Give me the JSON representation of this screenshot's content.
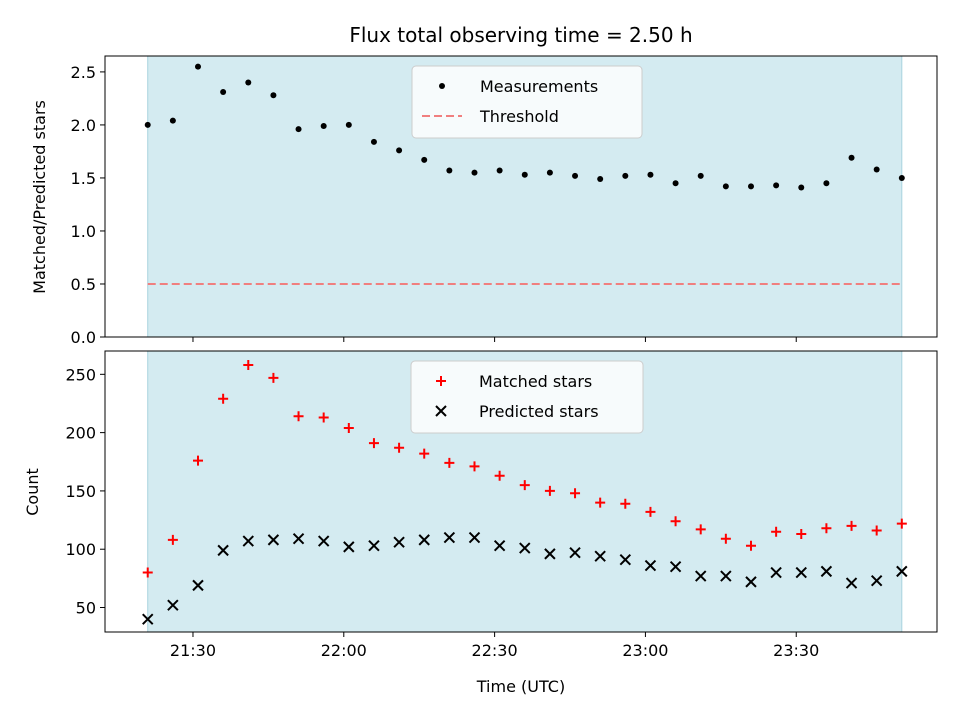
{
  "chart_data": {
    "title": "Flux total observing time = 2.50 h",
    "xlabel": "Time (UTC)",
    "x_tick_labels": [
      "21:30",
      "22:00",
      "22:30",
      "23:00",
      "23:30"
    ],
    "x_tick_minutes": [
      1290,
      1320,
      1350,
      1380,
      1410
    ],
    "x_range_minutes": [
      1272.5,
      1438
    ],
    "observing_window_minutes": [
      1281,
      1431
    ],
    "band_color": "#d4ebf1",
    "time_points": [
      "21:21",
      "21:26",
      "21:31",
      "21:36",
      "21:41",
      "21:46",
      "21:51",
      "21:56",
      "22:01",
      "22:06",
      "22:11",
      "22:16",
      "22:21",
      "22:26",
      "22:31",
      "22:36",
      "22:41",
      "22:46",
      "22:51",
      "22:56",
      "23:01",
      "23:06",
      "23:11",
      "23:16",
      "23:21",
      "23:26",
      "23:31",
      "23:36",
      "23:41",
      "23:46",
      "23:51"
    ],
    "panels": [
      {
        "type": "scatter",
        "ylabel": "Matched/Predicted stars",
        "ylim": [
          0,
          2.65
        ],
        "y_ticks": [
          0.0,
          0.5,
          1.0,
          1.5,
          2.0,
          2.5
        ],
        "y_tick_labels": [
          "0.0",
          "0.5",
          "1.0",
          "1.5",
          "2.0",
          "2.5"
        ],
        "legend": "upper center",
        "series": [
          {
            "name": "Measurements",
            "marker": "dot",
            "color": "#000000",
            "values": [
              2.0,
              2.04,
              2.55,
              2.31,
              2.4,
              2.28,
              1.96,
              1.99,
              2.0,
              1.84,
              1.76,
              1.67,
              1.57,
              1.55,
              1.57,
              1.53,
              1.55,
              1.52,
              1.49,
              1.52,
              1.53,
              1.45,
              1.52,
              1.42,
              1.42,
              1.43,
              1.41,
              1.45,
              1.69,
              1.58,
              1.5
            ]
          }
        ],
        "threshold": {
          "name": "Threshold",
          "value": 0.5,
          "color": "#f07f7f"
        }
      },
      {
        "type": "scatter",
        "ylabel": "Count",
        "ylim": [
          29,
          270
        ],
        "y_ticks": [
          50,
          100,
          150,
          200,
          250
        ],
        "y_tick_labels": [
          "50",
          "100",
          "150",
          "200",
          "250"
        ],
        "legend": "upper center",
        "series": [
          {
            "name": "Matched stars",
            "marker": "plus",
            "color": "#ff0000",
            "values": [
              80,
              108,
              176,
              229,
              258,
              247,
              214,
              213,
              204,
              191,
              187,
              182,
              174,
              171,
              163,
              155,
              150,
              148,
              140,
              139,
              132,
              124,
              117,
              109,
              103,
              115,
              113,
              118,
              120,
              116,
              122
            ]
          },
          {
            "name": "Predicted stars",
            "marker": "x",
            "color": "#000000",
            "values": [
              40,
              52,
              69,
              99,
              107,
              108,
              109,
              107,
              102,
              103,
              106,
              108,
              110,
              110,
              103,
              101,
              96,
              97,
              94,
              91,
              86,
              85,
              77,
              77,
              72,
              80,
              80,
              81,
              71,
              73,
              81
            ]
          }
        ]
      }
    ]
  }
}
